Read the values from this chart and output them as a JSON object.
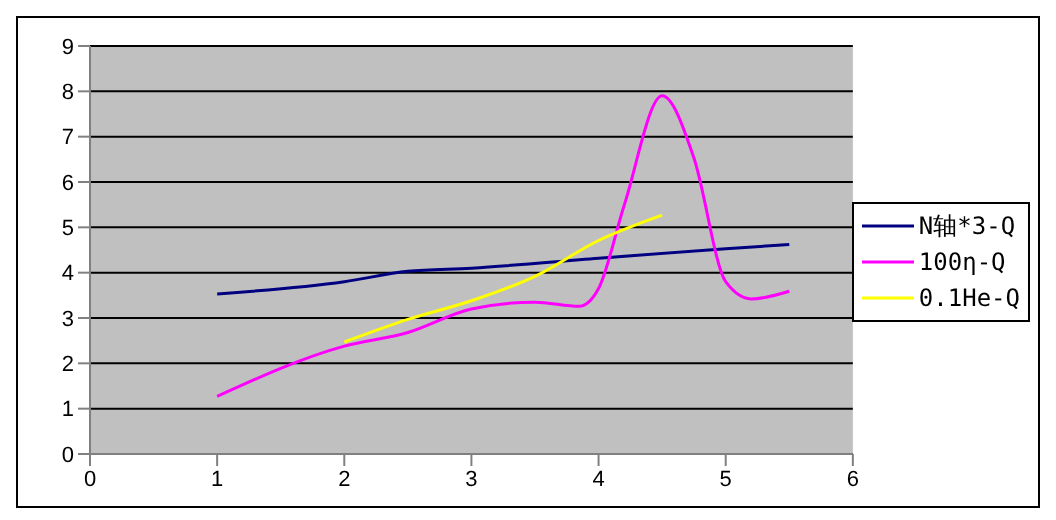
{
  "chart_data": {
    "type": "line",
    "xlim": [
      0,
      6
    ],
    "xticks": [
      0,
      1,
      2,
      3,
      4,
      5,
      6
    ],
    "ylim": [
      0,
      9
    ],
    "yticks": [
      0,
      1,
      2,
      3,
      4,
      5,
      6,
      7,
      8,
      9
    ],
    "grid": "y",
    "legend": "right",
    "marker": "none",
    "line_style": "solid",
    "series": [
      {
        "name": "N轴*3-Q",
        "color": "#000080",
        "x": [
          1,
          2,
          2.5,
          3,
          4,
          5,
          5.5
        ],
        "values": [
          3.53,
          3.8,
          4.03,
          4.1,
          4.32,
          4.53,
          4.62
        ]
      },
      {
        "name": "100η-Q",
        "color": "#ff00ff",
        "x": [
          1,
          2,
          2.5,
          3,
          3.5,
          3.85,
          4,
          4.2,
          4.5,
          4.75,
          5,
          5.2,
          5.5
        ],
        "values": [
          1.27,
          2.38,
          2.68,
          3.2,
          3.35,
          3.26,
          3.65,
          5.47,
          7.9,
          6.53,
          3.8,
          3.42,
          3.59
        ]
      },
      {
        "name": "0.1He-Q",
        "color": "#ffff00",
        "x": [
          2,
          2.5,
          3,
          3.5,
          4,
          4.5
        ],
        "values": [
          2.47,
          2.97,
          3.38,
          3.92,
          4.71,
          5.27
        ]
      }
    ]
  }
}
